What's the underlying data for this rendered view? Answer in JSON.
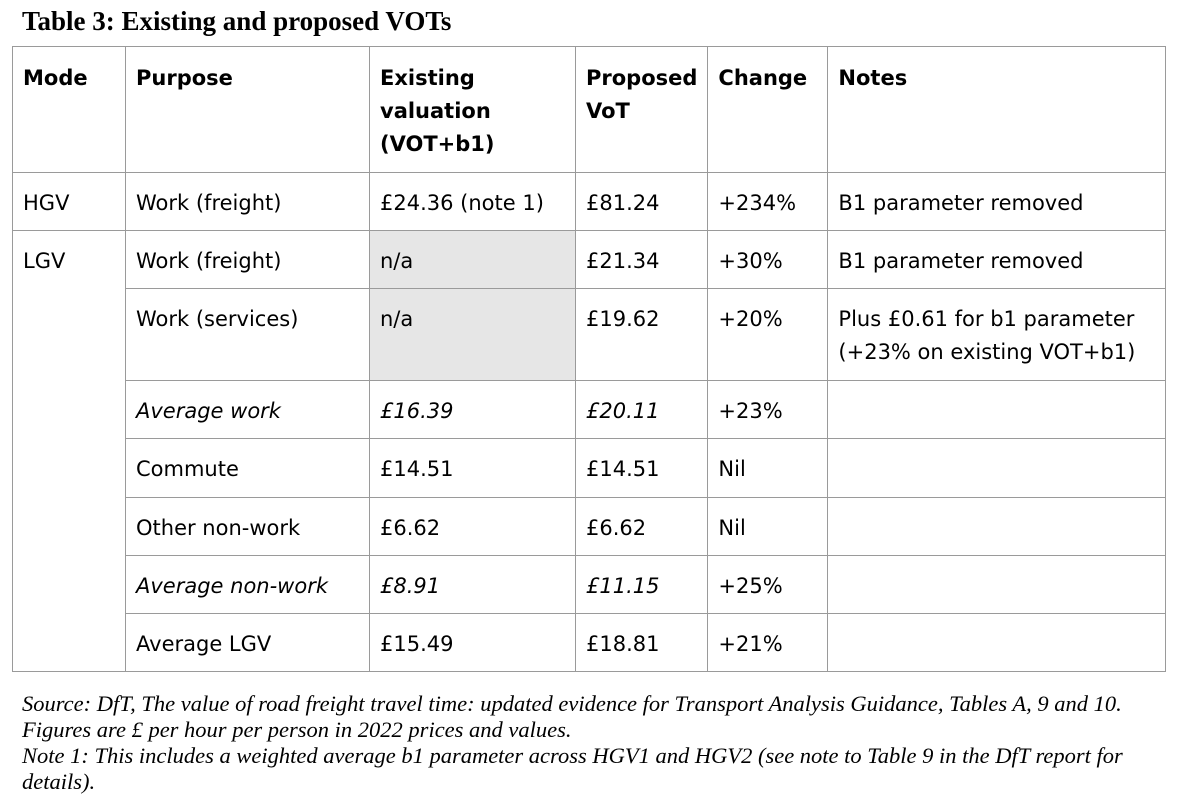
{
  "title": "Table 3: Existing and proposed VOTs",
  "table": {
    "headers": {
      "mode": "Mode",
      "purpose": "Purpose",
      "existing": "Existing valuation (VOT+b1)",
      "proposed": "Proposed VoT",
      "change": "Change",
      "notes": "Notes"
    },
    "rows": [
      {
        "mode": "HGV",
        "purpose": "Work (freight)",
        "existing": "£24.36 (note 1)",
        "proposed": "£81.24",
        "change": "+234%",
        "notes": "B1 parameter removed"
      },
      {
        "mode": "LGV",
        "purpose": "Work (freight)",
        "existing": "n/a",
        "proposed": "£21.34",
        "change": "+30%",
        "notes": "B1 parameter removed"
      },
      {
        "mode": "",
        "purpose": "Work (services)",
        "existing": "n/a",
        "proposed": "£19.62",
        "change": "+20%",
        "notes": "Plus £0.61 for b1 parameter (+23% on existing VOT+b1)"
      },
      {
        "mode": "",
        "purpose": "Average work",
        "existing": "£16.39",
        "proposed": "£20.11",
        "change": "+23%",
        "notes": ""
      },
      {
        "mode": "",
        "purpose": "Commute",
        "existing": "£14.51",
        "proposed": "£14.51",
        "change": "Nil",
        "notes": ""
      },
      {
        "mode": "",
        "purpose": "Other non-work",
        "existing": "£6.62",
        "proposed": "£6.62",
        "change": "Nil",
        "notes": ""
      },
      {
        "mode": "",
        "purpose": "Average non-work",
        "existing": "£8.91",
        "proposed": "£11.15",
        "change": "+25%",
        "notes": ""
      },
      {
        "mode": "",
        "purpose": "Average LGV",
        "existing": "£15.49",
        "proposed": "£18.81",
        "change": "+21%",
        "notes": ""
      }
    ]
  },
  "source_note": "Source: DfT, The value of road freight travel time: updated evidence for Transport Analysis Guidance, Tables A, 9 and 10. Figures are £ per hour per person in 2022 prices and values.",
  "note1": "Note 1: This includes a weighted average b1 parameter across HGV1 and HGV2 (see note to Table 9 in the DfT report for details)."
}
